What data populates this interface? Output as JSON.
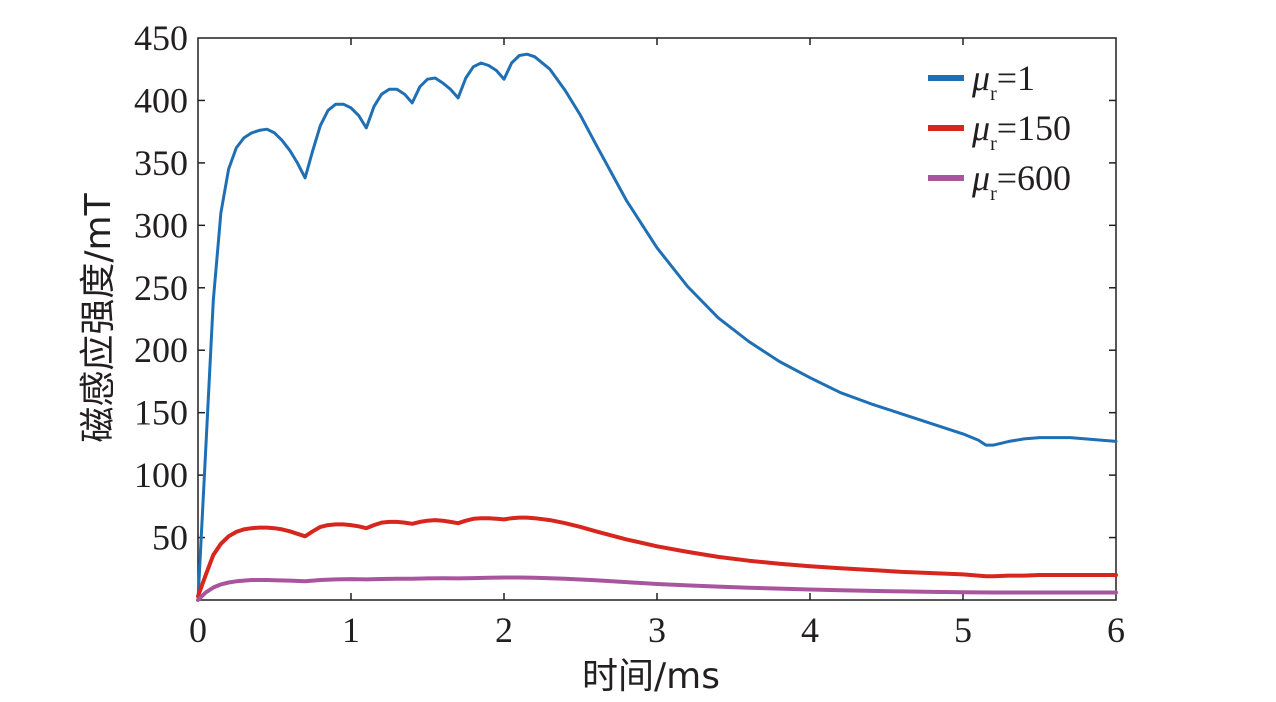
{
  "chart_data": {
    "type": "line",
    "xlabel": "时间/ms",
    "ylabel": "磁感应强度/mT",
    "xlim": [
      0,
      6
    ],
    "ylim": [
      0,
      450
    ],
    "xticks": [
      "0",
      "1",
      "2",
      "3",
      "4",
      "5",
      "6"
    ],
    "yticks": [
      "50",
      "100",
      "150",
      "200",
      "250",
      "300",
      "350",
      "400",
      "450"
    ],
    "legend_position": "top-right",
    "legend_symbol": "μ",
    "legend_subscript": "r",
    "series": [
      {
        "name": "=1",
        "color": "#1f6fb5",
        "x": [
          0,
          0.05,
          0.1,
          0.15,
          0.2,
          0.25,
          0.3,
          0.35,
          0.4,
          0.45,
          0.5,
          0.55,
          0.6,
          0.65,
          0.7,
          0.75,
          0.8,
          0.85,
          0.9,
          0.95,
          1.0,
          1.05,
          1.1,
          1.15,
          1.2,
          1.25,
          1.3,
          1.35,
          1.4,
          1.45,
          1.5,
          1.55,
          1.6,
          1.65,
          1.7,
          1.75,
          1.8,
          1.85,
          1.9,
          1.95,
          2.0,
          2.05,
          2.1,
          2.15,
          2.2,
          2.3,
          2.4,
          2.5,
          2.6,
          2.8,
          3.0,
          3.2,
          3.4,
          3.6,
          3.8,
          4.0,
          4.2,
          4.4,
          4.6,
          4.8,
          5.0,
          5.1,
          5.15,
          5.2,
          5.3,
          5.4,
          5.5,
          5.6,
          5.7,
          5.8,
          5.9,
          6.0
        ],
        "y": [
          0,
          120,
          240,
          310,
          345,
          362,
          370,
          374,
          376,
          377,
          374,
          368,
          360,
          350,
          338,
          360,
          380,
          392,
          397,
          397,
          394,
          388,
          378,
          395,
          405,
          409,
          409,
          405,
          398,
          411,
          417,
          418,
          414,
          409,
          402,
          418,
          427,
          430,
          428,
          424,
          417,
          430,
          436,
          437,
          435,
          425,
          408,
          388,
          365,
          320,
          282,
          251,
          226,
          207,
          191,
          178,
          166,
          157,
          149,
          141,
          133,
          128,
          124,
          124,
          127,
          129,
          130,
          130,
          130,
          129,
          128,
          127
        ]
      },
      {
        "name": "=150",
        "color": "#d7261e",
        "x": [
          0,
          0.05,
          0.1,
          0.15,
          0.2,
          0.25,
          0.3,
          0.35,
          0.4,
          0.45,
          0.5,
          0.55,
          0.6,
          0.65,
          0.7,
          0.75,
          0.8,
          0.85,
          0.9,
          0.95,
          1.0,
          1.05,
          1.1,
          1.15,
          1.2,
          1.25,
          1.3,
          1.35,
          1.4,
          1.45,
          1.5,
          1.55,
          1.6,
          1.65,
          1.7,
          1.75,
          1.8,
          1.85,
          1.9,
          1.95,
          2.0,
          2.05,
          2.1,
          2.15,
          2.2,
          2.3,
          2.4,
          2.5,
          2.6,
          2.8,
          3.0,
          3.2,
          3.4,
          3.6,
          3.8,
          4.0,
          4.2,
          4.4,
          4.6,
          4.8,
          5.0,
          5.1,
          5.15,
          5.2,
          5.3,
          5.4,
          5.5,
          5.6,
          5.7,
          5.8,
          5.9,
          6.0
        ],
        "y": [
          3,
          20,
          36,
          45,
          51,
          54.5,
          56.5,
          57.5,
          58,
          58,
          57.5,
          56.5,
          55,
          53,
          51,
          55,
          58.5,
          60,
          60.5,
          60.5,
          60,
          59,
          57.5,
          60,
          62,
          62.5,
          62.5,
          62,
          61,
          62.5,
          63.5,
          64,
          63.5,
          62.5,
          61.5,
          63.5,
          65,
          65.5,
          65.5,
          65,
          64.5,
          65.5,
          66,
          66,
          65.5,
          64,
          61.5,
          58.5,
          55,
          48.5,
          43,
          38.5,
          34.5,
          31.5,
          29,
          27,
          25.5,
          24,
          22.5,
          21.5,
          20.5,
          19.5,
          19,
          19,
          19.5,
          19.5,
          20,
          20,
          20,
          20,
          20,
          20
        ]
      },
      {
        "name": "=600",
        "color": "#a9559d",
        "x": [
          0,
          0.05,
          0.1,
          0.15,
          0.2,
          0.25,
          0.3,
          0.35,
          0.4,
          0.45,
          0.5,
          0.6,
          0.7,
          0.8,
          0.9,
          1.0,
          1.1,
          1.2,
          1.3,
          1.4,
          1.5,
          1.6,
          1.7,
          1.8,
          1.9,
          2.0,
          2.1,
          2.2,
          2.4,
          2.6,
          2.8,
          3.0,
          3.2,
          3.4,
          3.6,
          3.8,
          4.0,
          4.2,
          4.4,
          4.6,
          4.8,
          5.0,
          5.2,
          5.4,
          5.6,
          5.8,
          6.0
        ],
        "y": [
          0,
          6,
          10,
          12.5,
          14,
          15,
          15.5,
          16,
          16,
          16,
          15.8,
          15.5,
          15,
          16,
          16.5,
          16.7,
          16.5,
          16.8,
          17,
          17,
          17.3,
          17.4,
          17.3,
          17.5,
          17.8,
          18,
          18,
          17.8,
          17,
          15.8,
          14.3,
          12.8,
          11.7,
          10.7,
          9.8,
          9.1,
          8.4,
          7.8,
          7.3,
          6.9,
          6.5,
          6.2,
          6,
          6,
          6,
          6,
          6
        ]
      }
    ]
  }
}
